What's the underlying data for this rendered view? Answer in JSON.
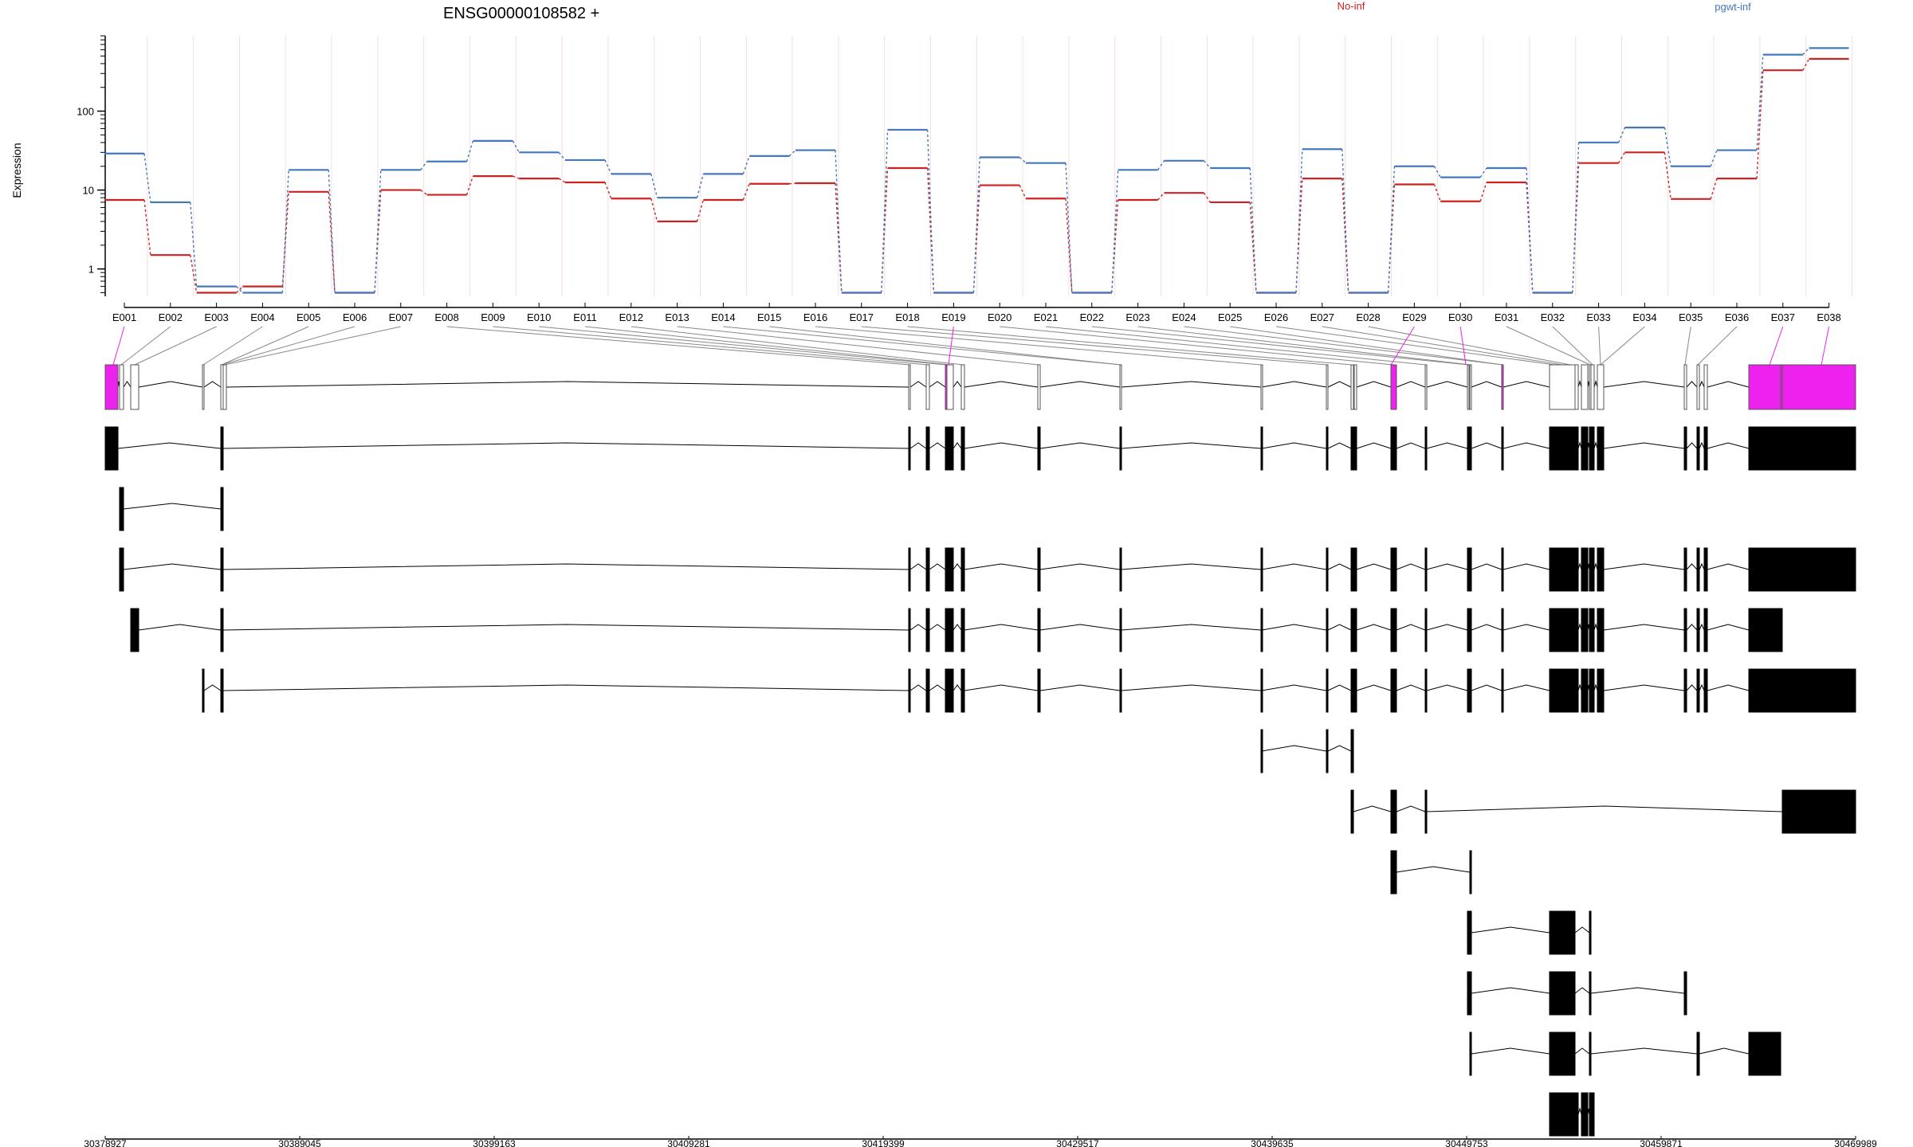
{
  "chart_data": {
    "type": "line",
    "title": "ENSG00000108582 +",
    "ylabel": "Expression",
    "y_scale": "log",
    "ylim": [
      0.45,
      900
    ],
    "y_ticks": [
      1,
      10,
      100
    ],
    "y_tick_labels": [
      "1",
      "10",
      "100"
    ],
    "categories": [
      "E001",
      "E002",
      "E003",
      "E004",
      "E005",
      "E006",
      "E007",
      "E008",
      "E009",
      "E010",
      "E011",
      "E012",
      "E013",
      "E014",
      "E015",
      "E016",
      "E017",
      "E018",
      "E019",
      "E020",
      "E021",
      "E022",
      "E023",
      "E024",
      "E025",
      "E026",
      "E027",
      "E028",
      "E029",
      "E030",
      "E031",
      "E032",
      "E033",
      "E034",
      "E035",
      "E036",
      "E037",
      "E038"
    ],
    "series": [
      {
        "name": "No-inf",
        "color": "#cc2222",
        "values": [
          7.5,
          1.5,
          0.5,
          0.6,
          9.5,
          0.5,
          10,
          8.7,
          15,
          14,
          12.5,
          7.8,
          4,
          7.5,
          12,
          12.2,
          0.5,
          19,
          0.5,
          11.5,
          7.8,
          0.5,
          7.5,
          9.2,
          7,
          0.5,
          14,
          0.5,
          11.8,
          7.2,
          12.5,
          0.5,
          22,
          30,
          7.7,
          14,
          330,
          460
        ]
      },
      {
        "name": "pgwt-inf",
        "color": "#4477bb",
        "values": [
          29,
          7,
          0.6,
          0.5,
          18,
          0.5,
          18,
          23,
          42,
          30,
          24,
          16,
          8,
          16,
          27,
          32,
          0.5,
          58,
          0.5,
          26,
          22,
          0.5,
          18,
          23.5,
          19,
          0.5,
          33,
          0.5,
          20,
          14.5,
          19,
          0.5,
          40,
          62,
          20,
          32,
          520,
          630
        ]
      }
    ],
    "highlighted_exons": [
      "E001",
      "E019",
      "E029",
      "E030",
      "E037",
      "E038"
    ],
    "highlight_color": "#ee22ee",
    "genomic_axis": {
      "range": [
        30378927,
        30469989
      ],
      "ticks": [
        30378927,
        30389045,
        30399163,
        30409281,
        30419399,
        30429517,
        30439635,
        30449753,
        30459871,
        30469989
      ],
      "tick_labels": [
        "30378927",
        "30389045",
        "30399163",
        "30409281",
        "30419399",
        "30429517",
        "30439635",
        "30449753",
        "30459871",
        "30469989"
      ]
    }
  }
}
